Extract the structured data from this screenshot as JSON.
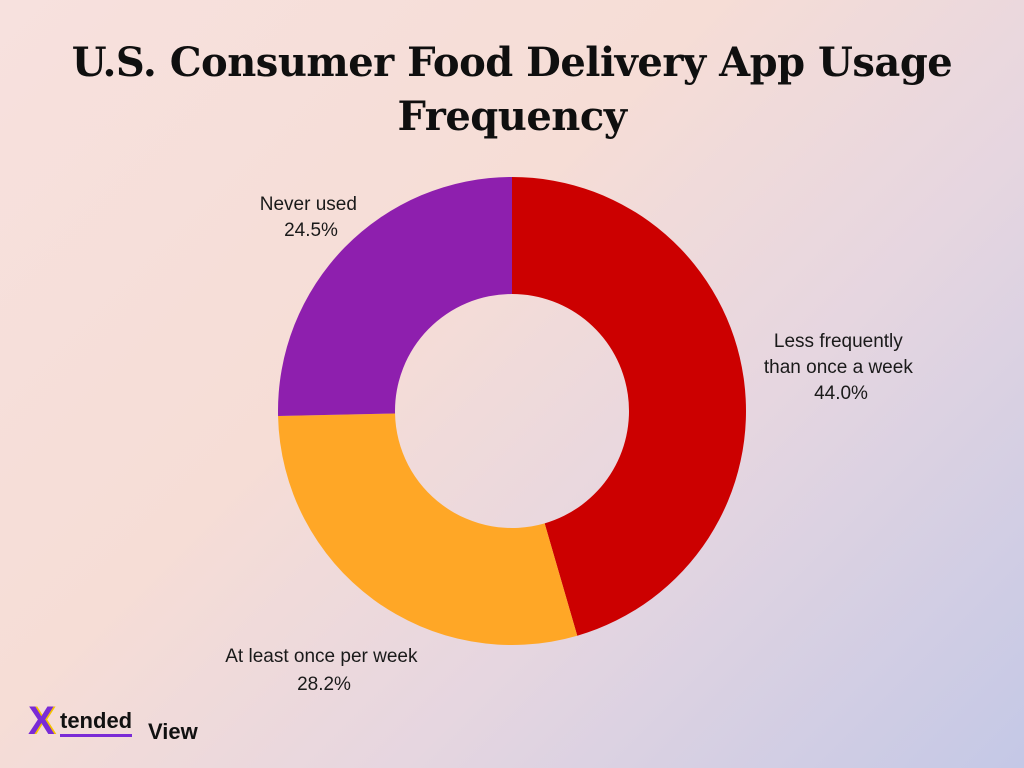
{
  "chart_data": {
    "type": "pie",
    "title_lines": [
      "U.S. Consumer Food Delivery App Usage",
      "Frequency"
    ],
    "donut": true,
    "slices": [
      {
        "label_lines": [
          "Less frequently",
          "than once a week"
        ],
        "value_label": "44.0%",
        "value": 44.0,
        "color": "#cc0000"
      },
      {
        "label_lines": [
          "At least once per week"
        ],
        "value_label": "28.2%",
        "value": 28.2,
        "color": "#ffa726"
      },
      {
        "label_lines": [
          "Never used"
        ],
        "value_label": "24.5%",
        "value": 24.5,
        "color": "#8e1fae"
      }
    ]
  },
  "logo": {
    "x": "X",
    "tended": "tended",
    "view": "View"
  }
}
